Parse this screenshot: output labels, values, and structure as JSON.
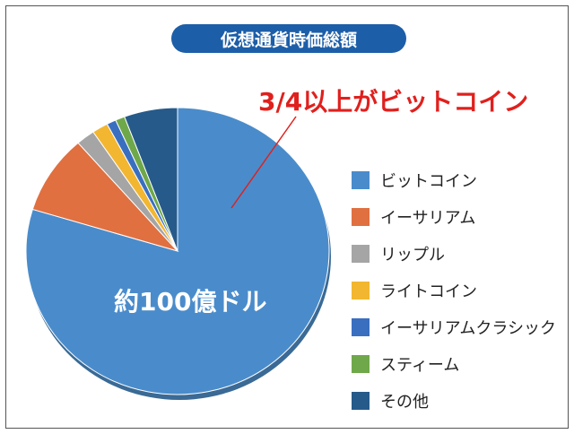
{
  "chart_data": {
    "type": "pie",
    "title": "仮想通貨時価総額",
    "annotation": "3/4以上がビットコイン",
    "center_label": "約100億ドル",
    "legend_position": "right",
    "slices": [
      {
        "label": "ビットコイン",
        "value": 79.7,
        "color": "#4a8ccb"
      },
      {
        "label": "イーサリアム",
        "value": 8.9,
        "color": "#e07040"
      },
      {
        "label": "リップル",
        "value": 2.0,
        "color": "#a5a5a5"
      },
      {
        "label": "ライトコイン",
        "value": 1.7,
        "color": "#f2b630"
      },
      {
        "label": "イーサリアムクラシック",
        "value": 1.0,
        "color": "#3a6fc0"
      },
      {
        "label": "スティーム",
        "value": 1.0,
        "color": "#6fa84a"
      },
      {
        "label": "その他",
        "value": 5.7,
        "color": "#265a8a"
      }
    ]
  }
}
